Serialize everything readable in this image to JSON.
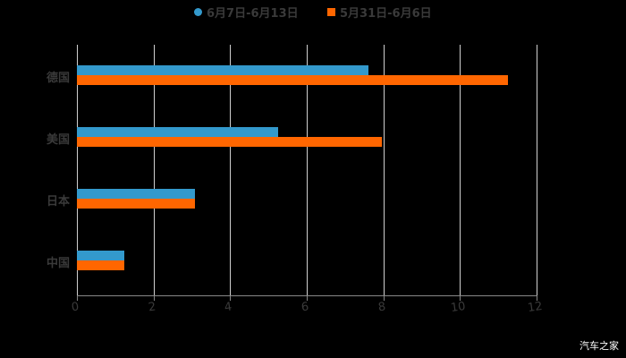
{
  "chart_data": {
    "type": "bar",
    "orientation": "horizontal",
    "title": "",
    "xlabel": "",
    "ylabel": "",
    "categories": [
      "德国",
      "美国",
      "日本",
      "中国"
    ],
    "series": [
      {
        "name": "6月7日-6月13日",
        "color": "#3399cc",
        "values": [
          7.6,
          5.25,
          3.08,
          1.24
        ]
      },
      {
        "name": "5月31日-6月6日",
        "color": "#ff6600",
        "values": [
          11.25,
          7.95,
          3.08,
          1.24
        ]
      }
    ],
    "xlim": [
      0,
      12
    ],
    "xticks": [
      "0",
      "2",
      "4",
      "6",
      "8",
      "10",
      "12"
    ],
    "grid": true,
    "legend_position": "top"
  },
  "legend": {
    "s1": "6月7日-6月13日",
    "s2": "5月31日-6月6日"
  },
  "watermark": "汽车之家"
}
